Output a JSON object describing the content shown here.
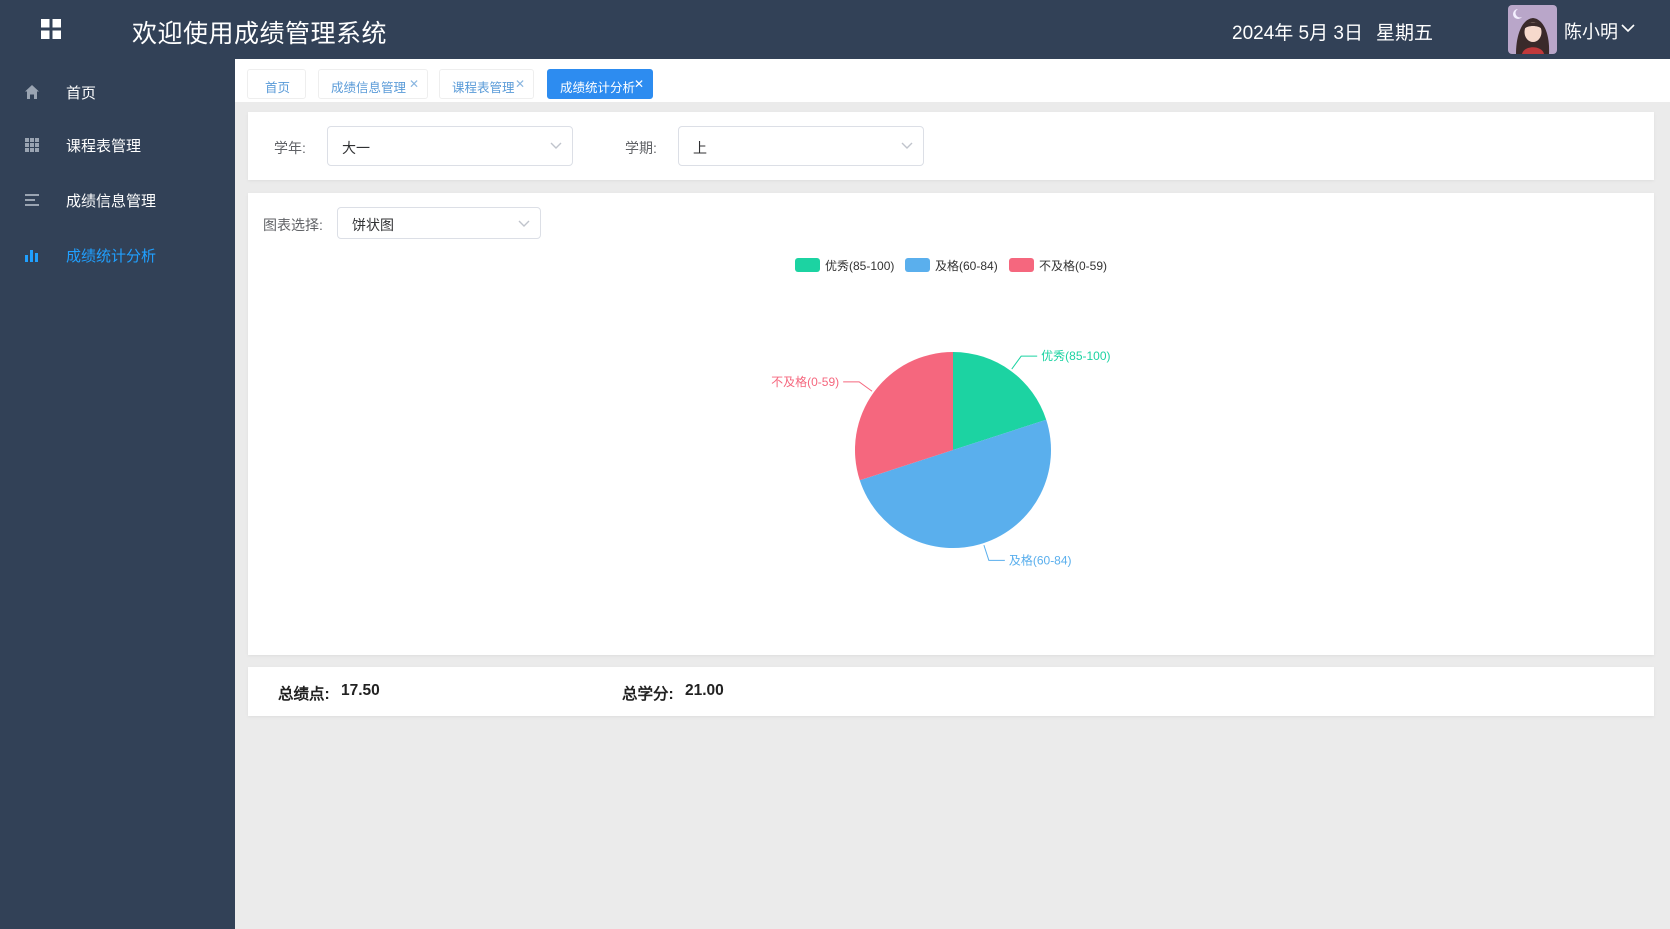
{
  "header": {
    "title": "欢迎使用成绩管理系统",
    "date": "2024年 5月 3日",
    "weekday": "星期五",
    "username": "陈小明",
    "bg_color": "#324157"
  },
  "sidebar": {
    "items": [
      {
        "label": "首页",
        "icon": "home-icon"
      },
      {
        "label": "课程表管理",
        "icon": "grid-icon"
      },
      {
        "label": "成绩信息管理",
        "icon": "list-icon"
      },
      {
        "label": "成绩统计分析",
        "icon": "bar-chart-icon",
        "active": true
      }
    ],
    "active_color": "#20a0ff"
  },
  "tabs": [
    {
      "label": "首页",
      "closable": false
    },
    {
      "label": "成绩信息管理",
      "closable": true
    },
    {
      "label": "课程表管理",
      "closable": true
    },
    {
      "label": "成绩统计分析",
      "closable": true,
      "active": true
    }
  ],
  "filters": {
    "year_label": "学年:",
    "year_value": "大一",
    "term_label": "学期:",
    "term_value": "上"
  },
  "chart_selector": {
    "label": "图表选择:",
    "value": "饼状图"
  },
  "chart_data": {
    "type": "pie",
    "labels": [
      "优秀(85-100)",
      "及格(60-84)",
      "不及格(0-59)"
    ],
    "values": [
      2,
      5,
      3
    ],
    "colors": [
      "#1cd3a2",
      "#5aafed",
      "#f5677e"
    ],
    "legend_position": "top-center"
  },
  "summary": {
    "gpa_label": "总绩点:",
    "gpa_value": "17.50",
    "credits_label": "总学分:",
    "credits_value": "21.00"
  }
}
